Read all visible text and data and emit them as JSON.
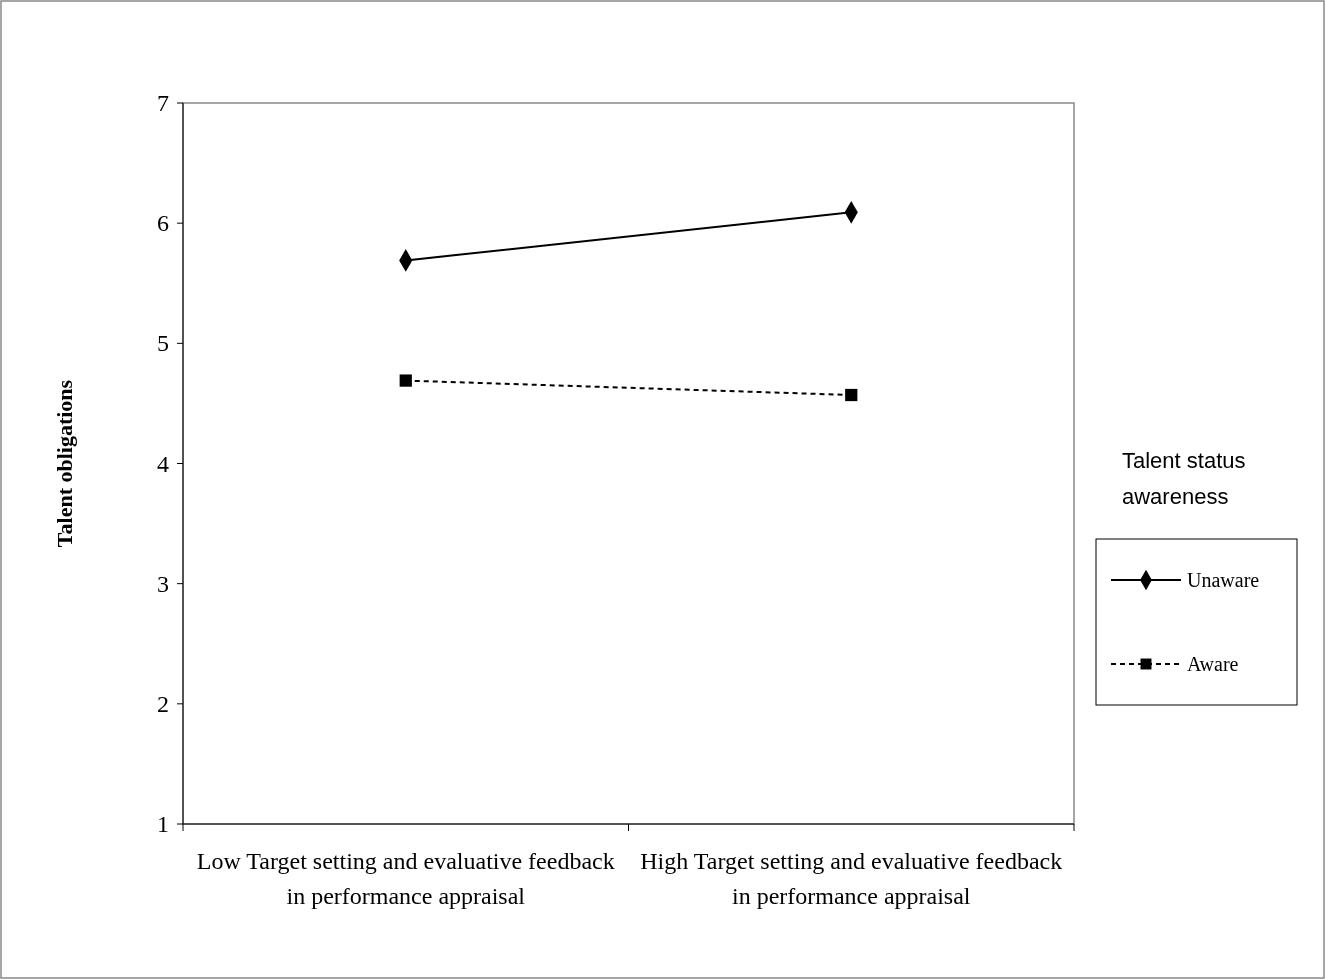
{
  "chart_data": {
    "type": "line",
    "ylabel": "Talent obligations",
    "legend_title": "Talent status awareness",
    "legend": "right",
    "grid": false,
    "categories": [
      "Low Target setting and evaluative feedback in performance appraisal",
      "High Target setting and evaluative feedback in performance appraisal"
    ],
    "ylim": [
      1,
      7
    ],
    "yticks": [
      1,
      2,
      3,
      4,
      5,
      6,
      7
    ],
    "series": [
      {
        "name": "Unaware",
        "color": "#000000",
        "values": [
          5.69,
          6.09
        ],
        "marker": "diamond",
        "line_style": "solid"
      },
      {
        "name": "Aware",
        "color": "#000000",
        "values": [
          4.69,
          4.57
        ],
        "marker": "square",
        "line_style": "dashed"
      }
    ]
  }
}
